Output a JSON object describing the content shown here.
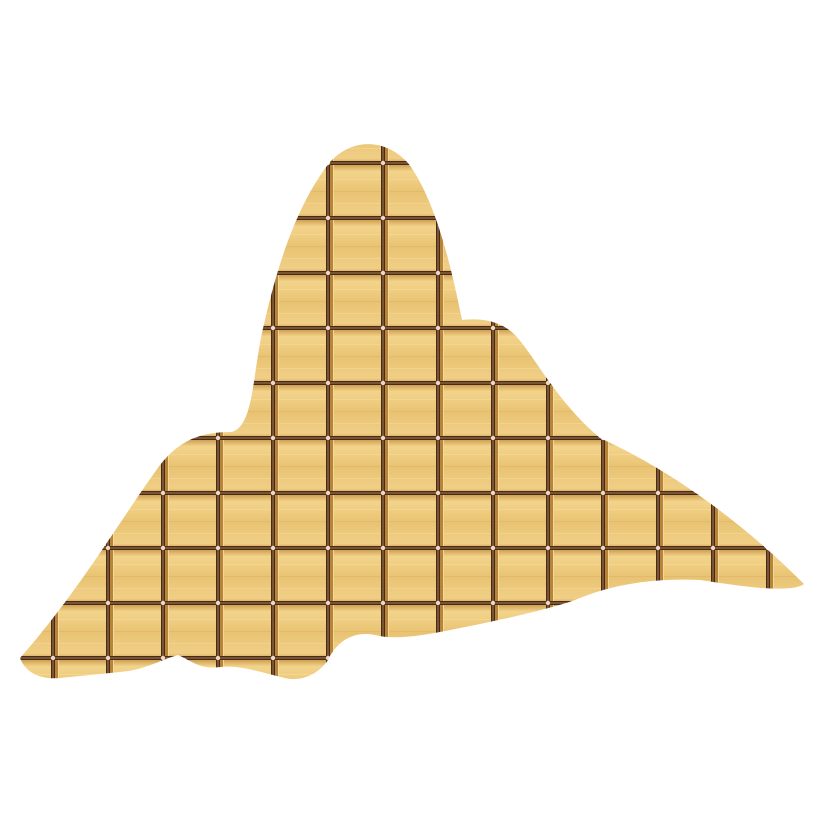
{
  "illustration": {
    "subject": "mountain-silhouette",
    "pattern": "square-tile-grid",
    "colors": {
      "background": "#ffffff",
      "tile_light": "#f2d289",
      "tile_mid": "#e2b764",
      "tile_dark": "#c99a4a",
      "grout_dark": "#4a2a14",
      "grout_highlight": "#e8c8a8"
    }
  }
}
